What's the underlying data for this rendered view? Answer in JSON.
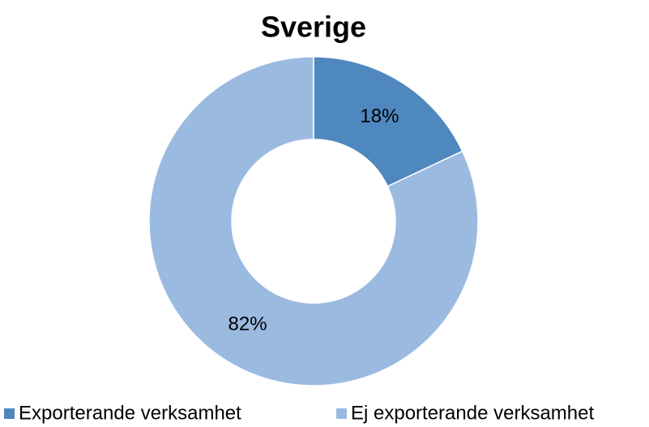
{
  "chart_data": {
    "type": "donut",
    "title": "Sverige",
    "categories": [
      "Exporterande verksamhet",
      "Ej exporterande verksamhet"
    ],
    "values": [
      18,
      82
    ],
    "value_labels": [
      "18%",
      "82%"
    ],
    "colors": [
      "#4f87bf",
      "#9bbae0"
    ],
    "legend": "bottom"
  }
}
